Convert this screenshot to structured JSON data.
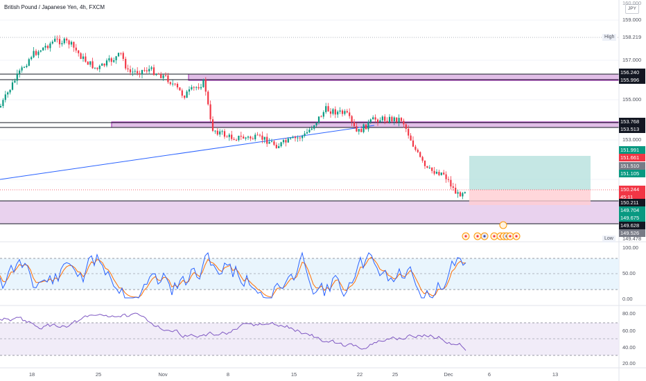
{
  "header": {
    "title": "British Pound / Japanese Yen, 4h, FXCM",
    "currency_badge": "JPY"
  },
  "price_axis": {
    "ticks": [
      "159.000",
      "157.000",
      "155.000",
      "153.000"
    ],
    "top_partial": "160.000",
    "high_tag": "High",
    "high_value": "158.219",
    "low_tag": "Low",
    "low_value": "149.478",
    "labels": [
      {
        "text": "156.240",
        "bg": "#131722",
        "fg": "#ffffff"
      },
      {
        "text": "155.996",
        "bg": "#131722",
        "fg": "#ffffff"
      },
      {
        "text": "153.768",
        "bg": "#131722",
        "fg": "#ffffff"
      },
      {
        "text": "153.513",
        "bg": "#131722",
        "fg": "#ffffff"
      },
      {
        "text": "151.991",
        "bg": "#089981",
        "fg": "#ffffff"
      },
      {
        "text": "151.661",
        "bg": "#f23645",
        "fg": "#ffffff"
      },
      {
        "text": "151.510",
        "bg": "#787b86",
        "fg": "#ffffff"
      },
      {
        "text": "151.105",
        "bg": "#089981",
        "fg": "#ffffff"
      },
      {
        "text": "150.244",
        "bg": "#f23645",
        "fg": "#ffffff"
      },
      {
        "text": "45:11",
        "bg": "#f23645",
        "fg": "#ffffff"
      },
      {
        "text": "150.211",
        "bg": "#131722",
        "fg": "#ffffff"
      },
      {
        "text": "149.704",
        "bg": "#089981",
        "fg": "#ffffff"
      },
      {
        "text": "149.675",
        "bg": "#089981",
        "fg": "#ffffff"
      },
      {
        "text": "149.628",
        "bg": "#131722",
        "fg": "#ffffff"
      },
      {
        "text": "149.526",
        "bg": "#787b86",
        "fg": "#ffffff"
      }
    ]
  },
  "stoch_axis": {
    "ticks": [
      "100.00",
      "50.00",
      "0.00"
    ]
  },
  "rsi_axis": {
    "ticks": [
      "80.00",
      "60.00",
      "40.00",
      "20.00"
    ]
  },
  "time_axis": {
    "labels": [
      "18",
      "25",
      "Nov",
      "8",
      "15",
      "22",
      "25",
      "Dec",
      "6",
      "13"
    ]
  },
  "colors": {
    "up": "#089981",
    "down": "#f23645",
    "zone_fill": "#e1bee7",
    "zone_border": "#9c27b0",
    "trendline": "#2962ff",
    "stoch_k": "#2962ff",
    "stoch_d": "#ff6d00",
    "rsi": "#7e57c2",
    "target_zone": "#b2dfdb",
    "stop_zone": "#ffcdd2"
  },
  "event_icons": [
    "event-icon",
    "event-icon",
    "uk-flag-icon",
    "event-icon",
    "event-icon",
    "event-icon",
    "uk-flag-icon",
    "event-icon",
    "event-icon"
  ]
}
